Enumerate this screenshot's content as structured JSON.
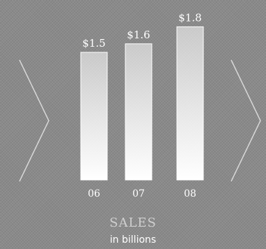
{
  "chart_data": {
    "type": "bar",
    "categories": [
      "06",
      "07",
      "08"
    ],
    "values": [
      1.5,
      1.6,
      1.8
    ],
    "value_labels": [
      "$1.5",
      "$1.6",
      "$1.8"
    ],
    "title": "SALES",
    "subtitle": "in billions",
    "ylim": [
      0,
      2.0
    ],
    "grid": false,
    "legend": "none",
    "bar_color": "#ffffff",
    "background_color": "#8a8a8a"
  },
  "navigation": {
    "prev_icon": "chevron-left-icon",
    "next_icon": "chevron-right-icon"
  }
}
